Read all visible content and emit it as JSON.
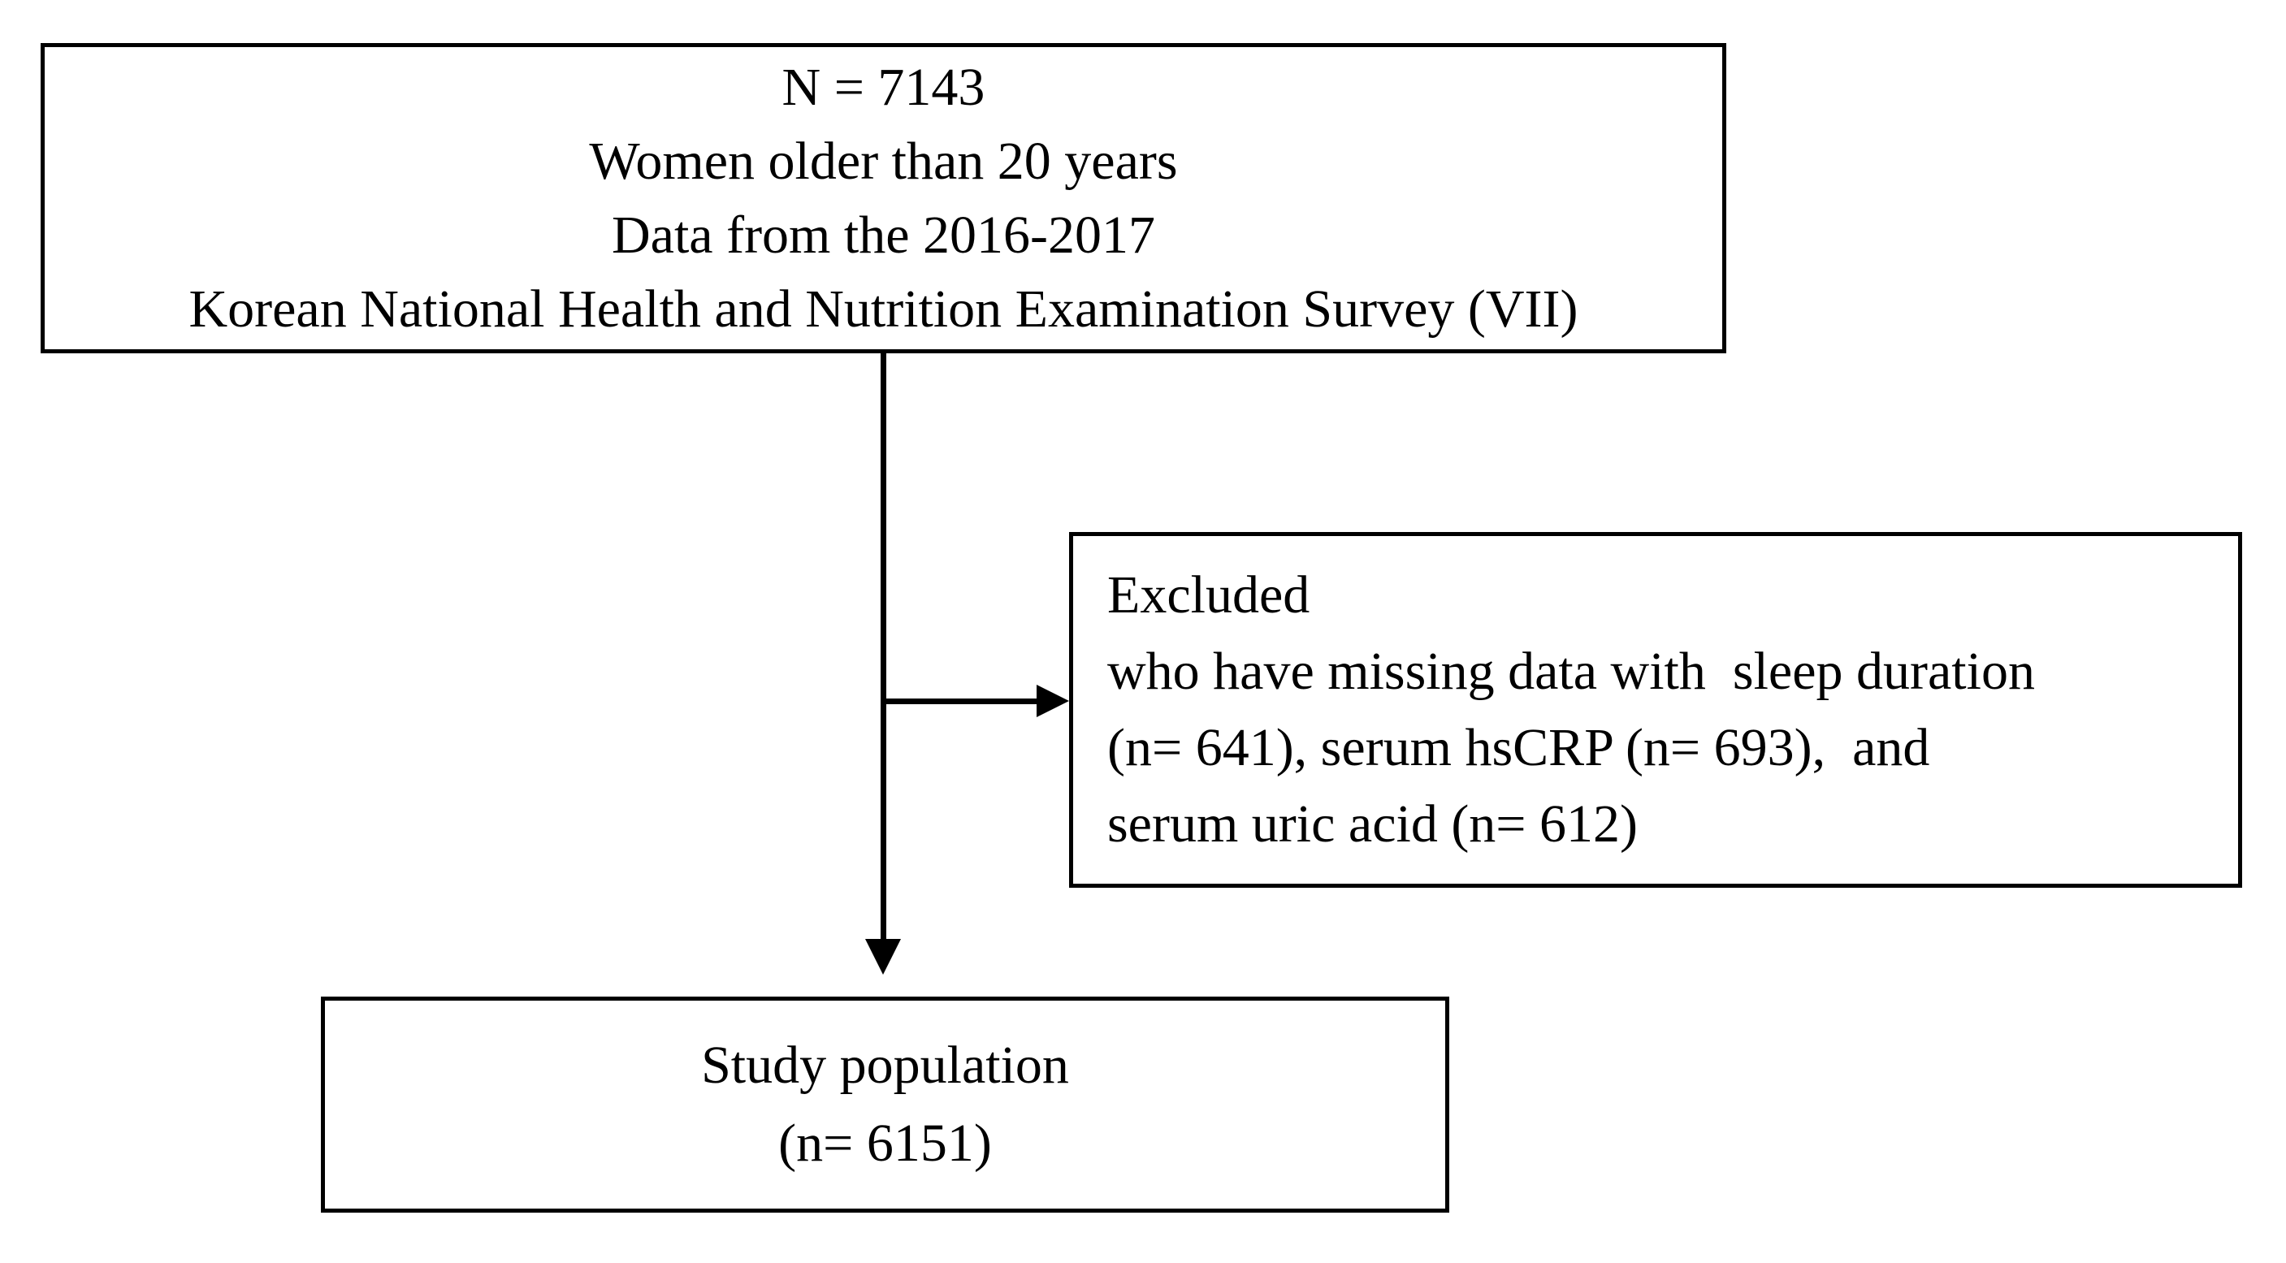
{
  "top_box": {
    "lines": [
      "N = 7143",
      "Women older than 20 years",
      "Data from the 2016-2017",
      "Korean National Health and Nutrition Examination Survey (VII)"
    ]
  },
  "excluded_box": {
    "lines": [
      "Excluded",
      "who have missing data with  sleep duration",
      "(n= 641), serum hsCRP (n= 693),  and",
      "serum uric acid (n= 612)"
    ]
  },
  "study_box": {
    "lines": [
      "Study population",
      "(n= 6151)"
    ]
  },
  "colors": {
    "background": "#ffffff",
    "text": "#000000",
    "line": "#000000"
  }
}
